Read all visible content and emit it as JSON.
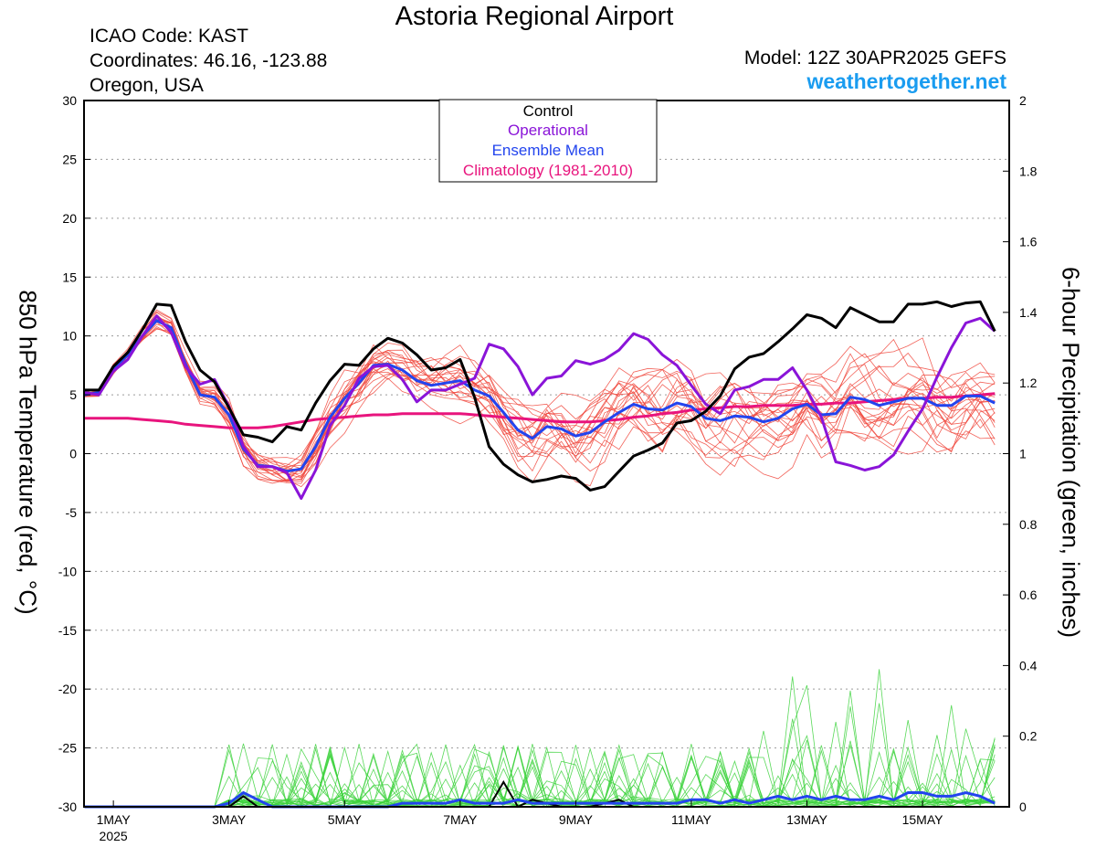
{
  "header": {
    "title": "Astoria Regional Airport",
    "icao": "ICAO Code: KAST",
    "coordinates": "Coordinates: 46.16, -123.88",
    "region": "Oregon, USA",
    "model": "Model: 12Z 30APR2025 GEFS",
    "site": "weathertogether.net"
  },
  "chart_data": {
    "type": "line",
    "title": "Astoria Regional Airport",
    "ylabel_left": "850 hPa Temperature (red, °C)",
    "ylabel_right": "6-hour Precipitation (green, inches)",
    "ylim_left": [
      -30,
      30
    ],
    "ylim_right": [
      0,
      2
    ],
    "yticks_left": [
      "30",
      "25",
      "20",
      "15",
      "10",
      "5",
      "0",
      "-5",
      "-10",
      "-15",
      "-20",
      "-25",
      "-30"
    ],
    "yticks_right": [
      "2",
      "1.8",
      "1.6",
      "1.4",
      "1.2",
      "1",
      "0.8",
      "0.6",
      "0.4",
      "0.2",
      "0"
    ],
    "x_start": "2025-04-30 12Z",
    "x_step_hours": 6,
    "xticks": [
      {
        "label": "1MAY",
        "sub": "2025",
        "index": 2
      },
      {
        "label": "3MAY",
        "index": 10
      },
      {
        "label": "5MAY",
        "index": 18
      },
      {
        "label": "7MAY",
        "index": 26
      },
      {
        "label": "9MAY",
        "index": 34
      },
      {
        "label": "11MAY",
        "index": 42
      },
      {
        "label": "13MAY",
        "index": 50
      },
      {
        "label": "15MAY",
        "index": 58
      }
    ],
    "legend": [
      {
        "label": "Control",
        "color": "#000000"
      },
      {
        "label": "Operational",
        "color": "#8a14d8"
      },
      {
        "label": "Ensemble Mean",
        "color": "#2244ee"
      },
      {
        "label": "Climatology (1981-2010)",
        "color": "#e8147d"
      }
    ],
    "legend_position": "top-center",
    "grid": true,
    "colors": {
      "member_temp": "#f0463c",
      "member_precip": "#3cd23c"
    },
    "series": [
      {
        "name": "Control",
        "color": "#000000",
        "axis": "left",
        "values": [
          5.4,
          5.4,
          7.4,
          8.6,
          10.5,
          12.7,
          12.6,
          9.5,
          7.1,
          6.1,
          3.9,
          1.6,
          1.4,
          1,
          2.3,
          2,
          4.3,
          6.2,
          7.6,
          7.5,
          8.9,
          9.8,
          9.4,
          8.4,
          7.1,
          7.3,
          8,
          4.8,
          0.6,
          -0.9,
          -1.8,
          -2.4,
          -2.2,
          -1.9,
          -2.1,
          -3.1,
          -2.8,
          -1.5,
          -0.2,
          0.3,
          0.9,
          2.6,
          2.8,
          3.6,
          4.9,
          7.2,
          8.2,
          8.5,
          9.5,
          10.6,
          11.8,
          11.5,
          10.7,
          12.4,
          11.8,
          11.2,
          11.2,
          12.7,
          12.7,
          12.9,
          12.5,
          12.8,
          12.9,
          10.4
        ]
      },
      {
        "name": "Operational",
        "color": "#8a14d8",
        "axis": "left",
        "values": [
          5.2,
          5,
          7,
          8,
          10,
          11.7,
          10.3,
          7.4,
          5.9,
          6.3,
          4,
          0.6,
          -1.1,
          -1.1,
          -1.6,
          -3.8,
          -1.4,
          2.4,
          4.1,
          6.4,
          7.4,
          7.5,
          6.3,
          4.4,
          5.4,
          5.4,
          5.9,
          6.4,
          9.3,
          8.9,
          7.4,
          5,
          6.4,
          6.6,
          7.9,
          7.6,
          8,
          8.8,
          10.2,
          9.7,
          8.4,
          7.5,
          5.8,
          4.2,
          3.4,
          5.4,
          5.7,
          6.3,
          6.3,
          7.3,
          5.4,
          3.1,
          -0.7,
          -1,
          -1.4,
          -1.1,
          -0.1,
          1.9,
          3.8,
          6.5,
          9,
          11.1,
          11.5,
          10.4
        ]
      },
      {
        "name": "Ensemble Mean",
        "color": "#2244ee",
        "axis": "left",
        "values": [
          5,
          5.2,
          7.2,
          8.4,
          10,
          11.3,
          10.7,
          7.6,
          5,
          4.8,
          3.3,
          0.4,
          -1,
          -1.1,
          -1.5,
          -1.3,
          0.6,
          3.1,
          4.7,
          6,
          7.5,
          7.6,
          7.1,
          6.2,
          5.8,
          6,
          6.2,
          5.4,
          4.9,
          3.5,
          2,
          1.3,
          2.3,
          2.1,
          1.5,
          1.8,
          2.7,
          3.5,
          4.2,
          3.8,
          3.7,
          4.3,
          4,
          3,
          2.8,
          3.2,
          3.1,
          2.7,
          3,
          3.8,
          4.2,
          3.3,
          3.4,
          4.8,
          4.6,
          4.1,
          4.4,
          4.7,
          4.7,
          4.1,
          4.1,
          4.9,
          4.9,
          4.3
        ]
      },
      {
        "name": "Climatology (1981-2010)",
        "color": "#e8147d",
        "axis": "left",
        "values": [
          3,
          3,
          3,
          3,
          2.9,
          2.8,
          2.7,
          2.5,
          2.4,
          2.3,
          2.2,
          2.2,
          2.2,
          2.3,
          2.5,
          2.7,
          2.9,
          3,
          3.1,
          3.2,
          3.3,
          3.3,
          3.4,
          3.4,
          3.4,
          3.4,
          3.4,
          3.3,
          3.2,
          3.1,
          3,
          2.9,
          2.8,
          2.7,
          2.7,
          2.7,
          2.8,
          2.9,
          3.1,
          3.2,
          3.4,
          3.5,
          3.7,
          3.8,
          3.9,
          4,
          4,
          4.1,
          4.1,
          4.1,
          4.2,
          4.2,
          4.3,
          4.3,
          4.4,
          4.5,
          4.6,
          4.7,
          4.7,
          4.8,
          4.8,
          4.9,
          5,
          5.1
        ]
      },
      {
        "name": "Control",
        "color": "#000000",
        "axis": "right",
        "values": [
          0,
          0,
          0,
          0,
          0,
          0,
          0,
          0,
          0,
          0,
          0,
          0.03,
          0,
          0,
          0,
          0,
          0,
          0,
          0,
          0,
          0,
          0,
          0,
          0,
          0,
          0,
          0,
          0,
          0,
          0.07,
          0,
          0.02,
          0.01,
          0,
          0,
          0,
          0.01,
          0.02,
          0,
          0,
          0,
          0,
          0,
          0,
          0,
          0,
          0,
          0,
          0,
          0,
          0,
          0,
          0,
          0,
          0,
          0,
          0,
          0,
          0,
          0,
          0,
          0,
          0,
          0
        ]
      },
      {
        "name": "Ensemble Mean",
        "color": "#2244ee",
        "axis": "right",
        "values": [
          0,
          0,
          0,
          0,
          0,
          0,
          0,
          0,
          0,
          0,
          0.01,
          0.04,
          0.02,
          0,
          0,
          0,
          0,
          0,
          0,
          0,
          0,
          0,
          0.01,
          0.01,
          0.01,
          0.01,
          0.02,
          0.01,
          0.01,
          0.01,
          0.02,
          0.01,
          0.01,
          0.01,
          0.01,
          0.01,
          0.01,
          0.01,
          0.01,
          0.01,
          0.01,
          0.01,
          0.02,
          0.02,
          0.01,
          0.02,
          0.01,
          0.02,
          0.03,
          0.02,
          0.03,
          0.02,
          0.03,
          0.02,
          0.02,
          0.03,
          0.02,
          0.04,
          0.04,
          0.03,
          0.03,
          0.04,
          0.03,
          0.01
        ]
      }
    ]
  }
}
